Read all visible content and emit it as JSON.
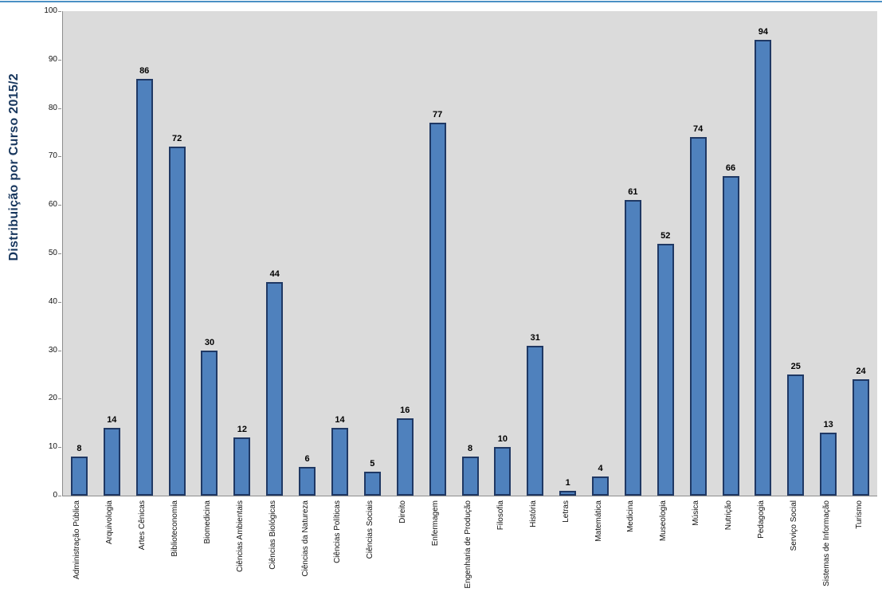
{
  "page": {
    "top_border_color": "#4a90c4"
  },
  "chart_data": {
    "type": "bar",
    "title": "Distribuição por Curso 2015/2",
    "xlabel": "",
    "ylabel": "Distribuição por Curso 2015/2",
    "categories": [
      "Administração Pública",
      "Arquivologia",
      "Artes Cênicas",
      "Biblioteconomia",
      "Biomedicina",
      "Ciências Ambientais",
      "Ciências Biológicas",
      "Ciências da Natureza",
      "Ciências Políticas",
      "Ciências Sociais",
      "Direito",
      "Enfermagem",
      "Engenharia de Produção",
      "Filosofia",
      "História",
      "Letras",
      "Matemática",
      "Medicina",
      "Museologia",
      "Música",
      "Nutrição",
      "Pedagogia",
      "Serviço Social",
      "Sistemas de Informação",
      "Turismo"
    ],
    "values": [
      8,
      14,
      86,
      72,
      30,
      12,
      44,
      6,
      14,
      5,
      16,
      77,
      8,
      10,
      31,
      1,
      4,
      61,
      52,
      74,
      66,
      94,
      25,
      13,
      24
    ],
    "ylim": [
      0,
      100
    ],
    "yticks": [
      0,
      10,
      20,
      30,
      40,
      50,
      60,
      70,
      80,
      90,
      100
    ],
    "grid": false,
    "legend": "none",
    "value_labels_shown": true,
    "bar_color": "#4F81BD",
    "bar_border_color": "#1F3864",
    "plot_bg": "#DBDBDB",
    "title_color": "#17365D",
    "value_label_color": "#000000"
  }
}
